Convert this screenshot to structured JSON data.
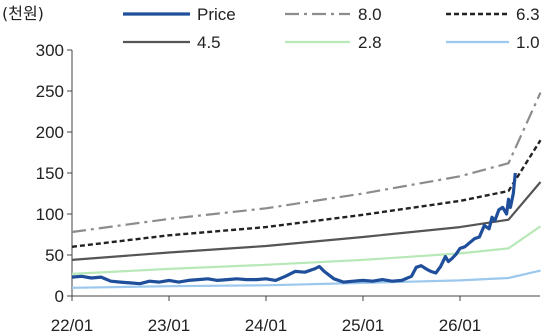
{
  "chart_data": {
    "type": "line",
    "unit_label": "(천원)",
    "y_ticks": [
      0,
      50,
      100,
      150,
      200,
      250,
      300
    ],
    "ylim": [
      0,
      300
    ],
    "x_ticks": [
      "22/01",
      "23/01",
      "24/01",
      "25/01",
      "26/01"
    ],
    "x_range_years": [
      2022.0,
      2026.83
    ],
    "grid": false,
    "legend_position": "top",
    "series": [
      {
        "name": "Price",
        "color": "#1f4e9a",
        "style": "solid-thick",
        "points": [
          [
            2022.0,
            23
          ],
          [
            2022.1,
            24
          ],
          [
            2022.2,
            22
          ],
          [
            2022.3,
            23
          ],
          [
            2022.4,
            18
          ],
          [
            2022.5,
            17
          ],
          [
            2022.6,
            16
          ],
          [
            2022.7,
            15
          ],
          [
            2022.8,
            18
          ],
          [
            2022.9,
            17
          ],
          [
            2023.0,
            19
          ],
          [
            2023.1,
            17
          ],
          [
            2023.2,
            19
          ],
          [
            2023.3,
            20
          ],
          [
            2023.4,
            21
          ],
          [
            2023.5,
            19
          ],
          [
            2023.6,
            20
          ],
          [
            2023.7,
            21
          ],
          [
            2023.8,
            20
          ],
          [
            2023.9,
            20
          ],
          [
            2024.0,
            21
          ],
          [
            2024.1,
            19
          ],
          [
            2024.2,
            24
          ],
          [
            2024.3,
            30
          ],
          [
            2024.4,
            29
          ],
          [
            2024.5,
            33
          ],
          [
            2024.55,
            36
          ],
          [
            2024.6,
            30
          ],
          [
            2024.7,
            21
          ],
          [
            2024.8,
            17
          ],
          [
            2024.9,
            18
          ],
          [
            2025.0,
            19
          ],
          [
            2025.1,
            18
          ],
          [
            2025.2,
            20
          ],
          [
            2025.3,
            18
          ],
          [
            2025.4,
            19
          ],
          [
            2025.5,
            24
          ],
          [
            2025.55,
            35
          ],
          [
            2025.6,
            37
          ],
          [
            2025.65,
            33
          ],
          [
            2025.7,
            30
          ],
          [
            2025.75,
            28
          ],
          [
            2025.8,
            36
          ],
          [
            2025.85,
            48
          ],
          [
            2025.88,
            42
          ],
          [
            2025.92,
            46
          ],
          [
            2025.96,
            51
          ],
          [
            2026.0,
            58
          ],
          [
            2026.05,
            60
          ],
          [
            2026.1,
            65
          ],
          [
            2026.15,
            70
          ],
          [
            2026.2,
            72
          ],
          [
            2026.25,
            86
          ],
          [
            2026.3,
            82
          ],
          [
            2026.33,
            96
          ],
          [
            2026.36,
            92
          ],
          [
            2026.4,
            105
          ],
          [
            2026.44,
            108
          ],
          [
            2026.48,
            100
          ],
          [
            2026.5,
            118
          ],
          [
            2026.52,
            108
          ],
          [
            2026.55,
            125
          ],
          [
            2026.57,
            150
          ]
        ]
      },
      {
        "name": "8.0",
        "color": "#8c8c8c",
        "style": "dashdot",
        "points": [
          [
            2022.0,
            78
          ],
          [
            2023.0,
            94
          ],
          [
            2024.0,
            107
          ],
          [
            2025.0,
            125
          ],
          [
            2026.0,
            146
          ],
          [
            2026.5,
            162
          ],
          [
            2026.83,
            248
          ]
        ]
      },
      {
        "name": "6.3",
        "color": "#222222",
        "style": "dashed",
        "points": [
          [
            2022.0,
            60
          ],
          [
            2023.0,
            74
          ],
          [
            2024.0,
            84
          ],
          [
            2025.0,
            99
          ],
          [
            2026.0,
            116
          ],
          [
            2026.5,
            128
          ],
          [
            2026.83,
            190
          ]
        ]
      },
      {
        "name": "4.5",
        "color": "#555555",
        "style": "solid",
        "points": [
          [
            2022.0,
            44
          ],
          [
            2023.0,
            53
          ],
          [
            2024.0,
            61
          ],
          [
            2025.0,
            72
          ],
          [
            2026.0,
            84
          ],
          [
            2026.5,
            93
          ],
          [
            2026.83,
            139
          ]
        ]
      },
      {
        "name": "2.8",
        "color": "#b8e8b8",
        "style": "solid",
        "points": [
          [
            2022.0,
            27
          ],
          [
            2023.0,
            33
          ],
          [
            2024.0,
            38
          ],
          [
            2025.0,
            44
          ],
          [
            2026.0,
            52
          ],
          [
            2026.5,
            58
          ],
          [
            2026.83,
            85
          ]
        ]
      },
      {
        "name": "1.0",
        "color": "#9cc8ee",
        "style": "solid",
        "points": [
          [
            2022.0,
            10
          ],
          [
            2023.0,
            12
          ],
          [
            2024.0,
            13
          ],
          [
            2025.0,
            16
          ],
          [
            2026.0,
            19
          ],
          [
            2026.5,
            22
          ],
          [
            2026.83,
            31
          ]
        ]
      }
    ]
  }
}
